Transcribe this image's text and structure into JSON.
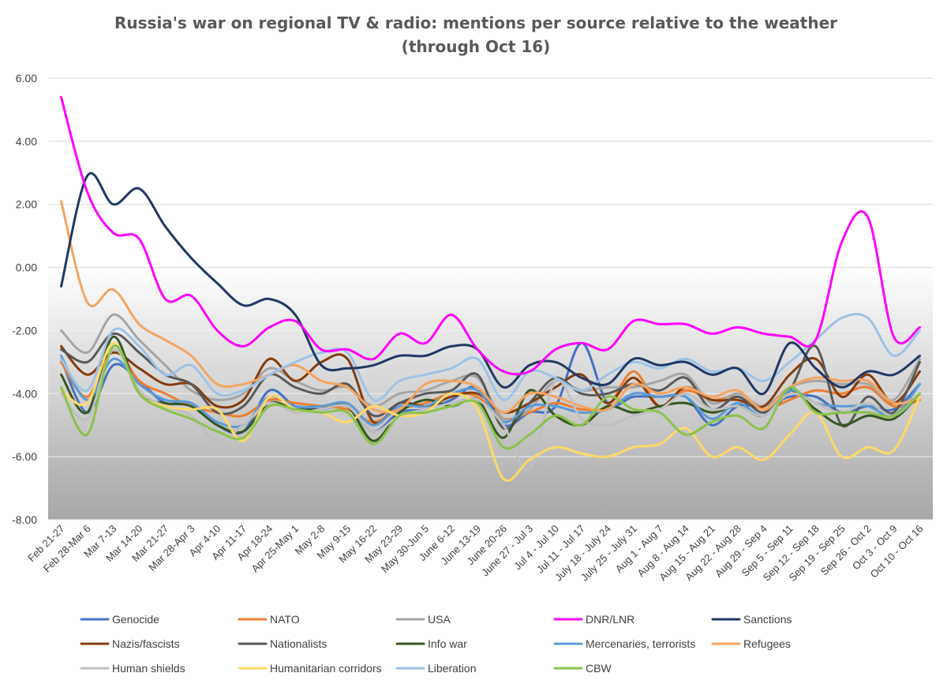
{
  "chart_data": {
    "type": "line",
    "title": "Russia's war on regional TV & radio: mentions per source relative to the weather",
    "subtitle": "(through Oct 16)",
    "xlabel": "",
    "ylabel": "",
    "ylim": [
      -8,
      6
    ],
    "y_ticks": [
      "6.00",
      "4.00",
      "2.00",
      "0.00",
      "-2.00",
      "-4.00",
      "-6.00",
      "-8.00"
    ],
    "grid": true,
    "legend_position": "bottom",
    "categories": [
      "Feb 21-27",
      "Feb 28-Mar 6",
      "Mar 7-13",
      "Mar 14-20",
      "Mar 21-27",
      "Mar 28-Apr 3",
      "Apr 4-10",
      "Apr 11-17",
      "Apr 18-24",
      "Apr 25-May 1",
      "May 2-8",
      "May 9-15",
      "May 16-22",
      "May 23-29",
      "May 30-Jun 5",
      "June 6-12",
      "June 13-19",
      "June 20-26",
      "June 27 - Jul 3",
      "Jul 4 - Jul 10",
      "Jul 11 - Jul 17",
      "July 18 - July 24",
      "July 25 - July 31",
      "Aug 1 - Aug 7",
      "Aug 8 - Aug 14",
      "Aug 15 - Aug 21",
      "Aug 22 - Aug 28",
      "Aug 29 - Sep 4",
      "Sep 5 - Sep 11",
      "Sep 12 - Sep 18",
      "Sep 19 - Sep 25",
      "Sep 26 - Oct 2",
      "Oct 3 - Oct 9",
      "Oct 10 - Oct 16"
    ],
    "series": [
      {
        "name": "Genocide",
        "color": "#4472C4",
        "values": [
          -2.9,
          -4.6,
          -3.1,
          -3.6,
          -4.3,
          -4.3,
          -5.0,
          -5.2,
          -3.9,
          -4.4,
          -4.5,
          -4.4,
          -5.2,
          -4.6,
          -4.5,
          -4.2,
          -3.8,
          -5.0,
          -4.6,
          -4.4,
          -2.4,
          -4.3,
          -4.1,
          -4.1,
          -4.1,
          -5.0,
          -4.4,
          -4.4,
          -4.1,
          -4.1,
          -4.6,
          -4.4,
          -4.5,
          -3.7
        ]
      },
      {
        "name": "NATO",
        "color": "#ED7D31",
        "values": [
          -3.0,
          -4.1,
          -2.6,
          -3.6,
          -4.0,
          -4.4,
          -4.6,
          -4.7,
          -4.2,
          -4.3,
          -4.4,
          -4.5,
          -4.9,
          -4.5,
          -4.3,
          -4.0,
          -4.1,
          -4.8,
          -4.6,
          -4.3,
          -4.5,
          -4.4,
          -3.3,
          -4.4,
          -3.9,
          -4.2,
          -4.1,
          -4.5,
          -4.2,
          -3.9,
          -4.0,
          -3.8,
          -4.4,
          -4.2
        ]
      },
      {
        "name": "USA",
        "color": "#A5A5A5",
        "values": [
          -2.0,
          -2.7,
          -1.5,
          -2.3,
          -3.1,
          -3.9,
          -4.2,
          -4.0,
          -3.2,
          -3.6,
          -3.9,
          -3.8,
          -4.4,
          -4.0,
          -3.9,
          -3.6,
          -3.5,
          -4.8,
          -4.5,
          -3.6,
          -3.9,
          -3.8,
          -3.8,
          -3.6,
          -3.4,
          -4.3,
          -4.0,
          -4.4,
          -3.8,
          -3.6,
          -3.7,
          -3.7,
          -4.2,
          -2.9
        ]
      },
      {
        "name": "DNR/LNR",
        "color": "#FF00FF",
        "values": [
          5.4,
          2.4,
          1.1,
          0.9,
          -1.0,
          -0.9,
          -2.0,
          -2.5,
          -1.9,
          -1.7,
          -2.6,
          -2.6,
          -2.9,
          -2.1,
          -2.4,
          -1.5,
          -2.6,
          -3.3,
          -3.3,
          -2.6,
          -2.4,
          -2.6,
          -1.7,
          -1.8,
          -1.8,
          -2.1,
          -1.9,
          -2.1,
          -2.2,
          -2.3,
          0.8,
          1.6,
          -2.2,
          -1.9
        ]
      },
      {
        "name": "Sanctions",
        "color": "#203864",
        "values": [
          -0.6,
          2.9,
          2.0,
          2.5,
          1.3,
          0.3,
          -0.5,
          -1.2,
          -1.0,
          -1.5,
          -3.1,
          -3.2,
          -3.1,
          -2.8,
          -2.8,
          -2.5,
          -2.6,
          -3.8,
          -3.1,
          -3.0,
          -3.5,
          -3.7,
          -2.9,
          -3.1,
          -3.0,
          -3.4,
          -3.2,
          -4.0,
          -2.4,
          -3.2,
          -3.8,
          -3.3,
          -3.4,
          -2.8
        ]
      },
      {
        "name": "Nazis/fascists",
        "color": "#843C0C",
        "values": [
          -2.5,
          -3.4,
          -2.7,
          -3.2,
          -3.7,
          -3.7,
          -4.4,
          -4.2,
          -2.9,
          -3.6,
          -3.0,
          -2.9,
          -4.9,
          -4.3,
          -4.4,
          -4.1,
          -4.0,
          -4.6,
          -4.3,
          -3.8,
          -3.4,
          -4.3,
          -3.5,
          -4.4,
          -3.8,
          -4.2,
          -4.2,
          -4.4,
          -3.4,
          -2.9,
          -4.1,
          -3.4,
          -4.3,
          -3.3
        ]
      },
      {
        "name": "Nationalists",
        "color": "#595959",
        "values": [
          -2.6,
          -3.0,
          -2.1,
          -2.7,
          -3.4,
          -3.7,
          -4.6,
          -4.4,
          -3.4,
          -3.8,
          -4.0,
          -3.7,
          -4.7,
          -4.3,
          -4.0,
          -3.9,
          -3.4,
          -5.1,
          -4.3,
          -3.5,
          -4.0,
          -4.0,
          -3.7,
          -3.9,
          -3.5,
          -4.5,
          -4.1,
          -4.6,
          -3.9,
          -2.5,
          -5.0,
          -4.1,
          -4.6,
          -3.0
        ]
      },
      {
        "name": "Info war",
        "color": "#375623",
        "values": [
          -3.4,
          -4.6,
          -2.2,
          -4.0,
          -4.3,
          -4.4,
          -5.0,
          -5.2,
          -4.3,
          -4.5,
          -4.5,
          -4.4,
          -5.5,
          -4.6,
          -4.2,
          -4.4,
          -4.2,
          -5.4,
          -3.9,
          -4.7,
          -5.0,
          -4.4,
          -4.6,
          -4.4,
          -4.3,
          -4.6,
          -4.4,
          -4.7,
          -3.9,
          -4.5,
          -5.0,
          -4.7,
          -4.8,
          -4.0
        ]
      },
      {
        "name": "Mercenaries, terrorists",
        "color": "#5B9BD5",
        "values": [
          -2.8,
          -4.2,
          -2.9,
          -3.7,
          -4.2,
          -4.3,
          -4.9,
          -5.0,
          -4.1,
          -4.4,
          -4.4,
          -4.3,
          -5.0,
          -4.4,
          -4.4,
          -4.0,
          -3.9,
          -4.9,
          -4.4,
          -4.4,
          -4.6,
          -4.5,
          -4.0,
          -4.1,
          -4.1,
          -4.8,
          -4.3,
          -4.7,
          -3.9,
          -4.3,
          -4.4,
          -4.4,
          -4.7,
          -3.7
        ]
      },
      {
        "name": "Refugees",
        "color": "#F4A460",
        "values": [
          2.1,
          -1.1,
          -0.7,
          -1.8,
          -2.3,
          -2.8,
          -3.7,
          -3.7,
          -3.4,
          -3.1,
          -3.6,
          -3.8,
          -4.5,
          -4.5,
          -3.7,
          -3.6,
          -3.8,
          -4.6,
          -4.0,
          -4.1,
          -4.4,
          -4.5,
          -3.7,
          -4.0,
          -3.8,
          -4.1,
          -3.9,
          -4.5,
          -3.8,
          -3.5,
          -3.6,
          -3.6,
          -4.3,
          -4.1
        ]
      },
      {
        "name": "Human shields",
        "color": "#BFBFBF",
        "values": [
          -4.0,
          -4.8,
          -2.6,
          -3.9,
          -4.4,
          -4.7,
          -5.5,
          -5.0,
          -4.3,
          -4.6,
          -4.5,
          -4.4,
          -5.2,
          -4.7,
          -4.5,
          -4.3,
          -4.2,
          -5.0,
          -6.4,
          -3.6,
          -4.8,
          -5.0,
          -4.7,
          -4.5,
          -4.0,
          -4.5,
          -4.4,
          -4.7,
          -4.0,
          -4.3,
          -4.6,
          -4.3,
          -4.7,
          -4.0
        ]
      },
      {
        "name": "Humanitarian corridors",
        "color": "#FFD966",
        "values": [
          -3.9,
          -4.3,
          -2.4,
          -4.0,
          -4.4,
          -4.5,
          -4.5,
          -5.5,
          -4.1,
          -4.5,
          -4.6,
          -4.9,
          -4.4,
          -4.7,
          -4.6,
          -4.0,
          -4.5,
          -6.7,
          -6.1,
          -5.7,
          -5.9,
          -6.0,
          -5.7,
          -5.6,
          -5.1,
          -6.0,
          -5.7,
          -6.1,
          -5.3,
          -4.6,
          -6.0,
          -5.7,
          -5.8,
          -4.1
        ]
      },
      {
        "name": "Liberation",
        "color": "#9DC3E6",
        "values": [
          -2.9,
          -3.9,
          -2.0,
          -2.5,
          -3.4,
          -3.1,
          -4.0,
          -3.9,
          -3.4,
          -3.0,
          -2.7,
          -2.7,
          -4.2,
          -3.6,
          -3.4,
          -3.2,
          -2.9,
          -4.2,
          -3.3,
          -3.5,
          -3.9,
          -3.4,
          -3.0,
          -3.2,
          -2.9,
          -3.3,
          -3.2,
          -3.6,
          -3.0,
          -2.3,
          -1.6,
          -1.6,
          -2.8,
          -2.0
        ]
      },
      {
        "name": "CBW",
        "color": "#8BC34A",
        "values": [
          -3.8,
          -5.3,
          -2.5,
          -4.0,
          -4.5,
          -4.8,
          -5.2,
          -5.4,
          -4.4,
          -4.5,
          -4.6,
          -4.6,
          -5.6,
          -4.7,
          -4.6,
          -4.4,
          -4.3,
          -5.7,
          -5.3,
          -4.7,
          -5.0,
          -4.1,
          -4.5,
          -4.6,
          -5.3,
          -4.9,
          -4.7,
          -5.1,
          -3.8,
          -4.6,
          -4.6,
          -4.6,
          -4.7,
          -4.0
        ]
      }
    ]
  }
}
